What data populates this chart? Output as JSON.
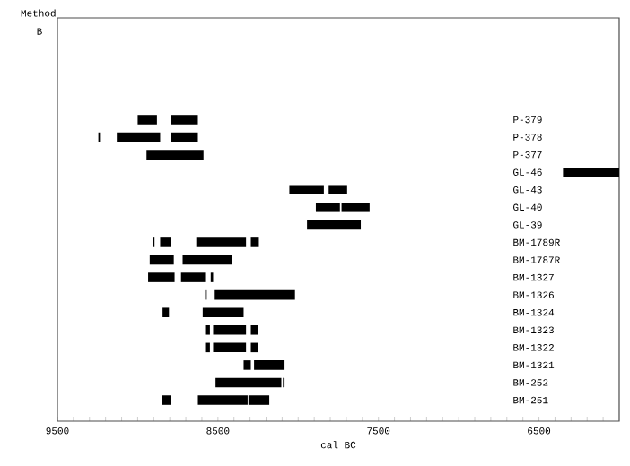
{
  "chart_data": {
    "type": "bar",
    "orientation": "horizontal",
    "title": "Method",
    "subtitle": "B",
    "xlabel": "cal BC",
    "categories": [
      "P-379",
      "P-378",
      "P-377",
      "GL-46",
      "GL-43",
      "GL-40",
      "GL-39",
      "BM-1789R",
      "BM-1787R",
      "BM-1327",
      "BM-1326",
      "BM-1324",
      "BM-1323",
      "BM-1322",
      "BM-1321",
      "BM-252",
      "BM-251"
    ],
    "series": [
      {
        "color": "#000000",
        "base": [
          8880,
          9235,
          8590,
          6000,
          7840,
          7740,
          7610,
          8895,
          8775,
          8770,
          8570,
          8805,
          8550,
          8550,
          8295,
          8105,
          8795
        ],
        "values": [
          120,
          10,
          355,
          350,
          215,
          150,
          335,
          10,
          150,
          165,
          10,
          40,
          30,
          30,
          45,
          410,
          55
        ]
      },
      {
        "color": "#000000",
        "base": [
          8625,
          8860,
          null,
          null,
          7695,
          7555,
          null,
          8795,
          8415,
          8580,
          8020,
          8340,
          8325,
          8325,
          8085,
          8085,
          8315
        ],
        "values": [
          165,
          270,
          null,
          null,
          115,
          175,
          null,
          65,
          305,
          150,
          500,
          255,
          205,
          205,
          190,
          10,
          310
        ]
      },
      {
        "color": "#000000",
        "base": [
          null,
          8625,
          null,
          null,
          null,
          null,
          null,
          8325,
          null,
          8530,
          null,
          null,
          8250,
          8250,
          null,
          null,
          8180
        ],
        "values": [
          null,
          165,
          null,
          null,
          null,
          null,
          null,
          310,
          null,
          15,
          null,
          null,
          45,
          45,
          null,
          null,
          130
        ]
      },
      {
        "color": "#000000",
        "base": [
          null,
          null,
          null,
          null,
          null,
          null,
          null,
          8245,
          null,
          null,
          null,
          null,
          null,
          null,
          null,
          null,
          null
        ],
        "values": [
          null,
          null,
          null,
          null,
          null,
          null,
          null,
          50,
          null,
          null,
          null,
          null,
          null,
          null,
          null,
          null,
          null
        ]
      }
    ],
    "xlim": [
      9500,
      6000
    ],
    "xticks": [
      9500,
      {
        "value": 9400,
        "label": null
      },
      {
        "value": 9300,
        "label": null
      },
      {
        "value": 9200,
        "label": null
      },
      {
        "value": 9100,
        "label": null
      },
      {
        "value": 9000,
        "label": null
      },
      {
        "value": 8900,
        "label": null
      },
      {
        "value": 8800,
        "label": null
      },
      {
        "value": 8700,
        "label": null
      },
      {
        "value": 8600,
        "label": null
      },
      8500,
      {
        "value": 8400,
        "label": null
      },
      {
        "value": 8300,
        "label": null
      },
      {
        "value": 8200,
        "label": null
      },
      {
        "value": 8100,
        "label": null
      },
      {
        "value": 8000,
        "label": null
      },
      {
        "value": 7900,
        "label": null
      },
      {
        "value": 7800,
        "label": null
      },
      {
        "value": 7700,
        "label": null
      },
      {
        "value": 7600,
        "label": null
      },
      7500,
      {
        "value": 7400,
        "label": null
      },
      {
        "value": 7300,
        "label": null
      },
      {
        "value": 7200,
        "label": null
      },
      {
        "value": 7100,
        "label": null
      },
      {
        "value": 7000,
        "label": null
      },
      {
        "value": 6900,
        "label": null
      },
      {
        "value": 6800,
        "label": null
      },
      {
        "value": 6700,
        "label": null
      },
      {
        "value": 6600,
        "label": null
      },
      6500,
      {
        "value": 6400,
        "label": null
      },
      {
        "value": 6300,
        "label": null
      },
      {
        "value": 6200,
        "label": null
      },
      {
        "value": 6100,
        "label": null
      }
    ],
    "grid": false
  }
}
